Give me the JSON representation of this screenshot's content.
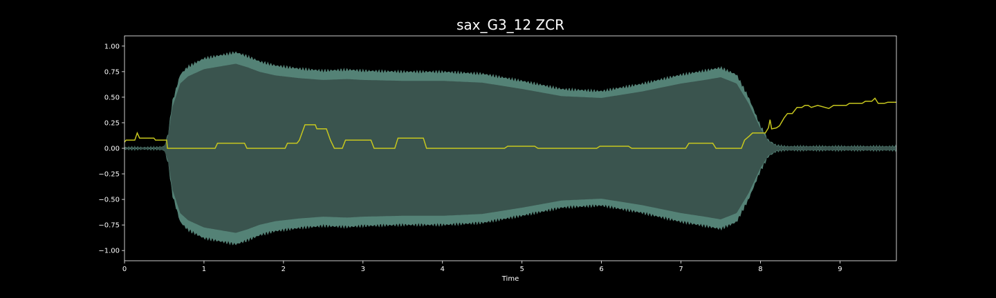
{
  "chart_data": {
    "type": "area",
    "title": "sax_G3_12 ZCR",
    "xlabel": "Time",
    "ylabel": "",
    "xlim": [
      0,
      9.71
    ],
    "ylim": [
      -1.1,
      1.1
    ],
    "grid": false,
    "x_ticks": [
      0,
      1,
      2,
      3,
      4,
      5,
      6,
      7,
      8,
      9
    ],
    "y_ticks": [
      1.0,
      0.75,
      0.5,
      0.25,
      0.0,
      -0.25,
      -0.5,
      -0.75,
      -1.0
    ],
    "y_tick_labels": [
      "1.00",
      "0.75",
      "0.50",
      "0.25",
      "0.00",
      "−0.25",
      "−0.50",
      "−0.75",
      "−1.00"
    ],
    "colors": {
      "background": "#000000",
      "waveform_fill": "#3a544e",
      "waveform_edge": "#6aa898",
      "zcr_line": "#c8c81e",
      "axes": "#ffffff"
    },
    "series": [
      {
        "kind": "waveform_envelope",
        "x": [
          0.0,
          0.4,
          0.5,
          0.55,
          0.6,
          0.7,
          0.8,
          0.9,
          1.0,
          1.2,
          1.4,
          1.55,
          1.7,
          1.9,
          2.2,
          2.5,
          2.8,
          3.0,
          3.5,
          4.0,
          4.5,
          5.0,
          5.5,
          6.0,
          6.5,
          7.0,
          7.3,
          7.5,
          7.7,
          7.85,
          8.0,
          8.1,
          8.2,
          8.3,
          8.5,
          9.0,
          9.71
        ],
        "upper": [
          0.01,
          0.01,
          0.02,
          0.15,
          0.45,
          0.72,
          0.8,
          0.84,
          0.88,
          0.91,
          0.94,
          0.9,
          0.85,
          0.81,
          0.78,
          0.76,
          0.77,
          0.76,
          0.75,
          0.75,
          0.73,
          0.66,
          0.58,
          0.56,
          0.63,
          0.72,
          0.76,
          0.79,
          0.72,
          0.5,
          0.22,
          0.08,
          0.03,
          0.02,
          0.02,
          0.02,
          0.02
        ],
        "lower": [
          -0.01,
          -0.01,
          -0.02,
          -0.15,
          -0.45,
          -0.72,
          -0.8,
          -0.84,
          -0.88,
          -0.91,
          -0.94,
          -0.9,
          -0.85,
          -0.81,
          -0.78,
          -0.76,
          -0.77,
          -0.76,
          -0.75,
          -0.75,
          -0.73,
          -0.66,
          -0.58,
          -0.56,
          -0.63,
          -0.72,
          -0.76,
          -0.79,
          -0.72,
          -0.5,
          -0.22,
          -0.08,
          -0.03,
          -0.02,
          -0.02,
          -0.02,
          -0.02
        ]
      },
      {
        "kind": "zcr_line",
        "x": [
          0.0,
          0.02,
          0.13,
          0.16,
          0.19,
          0.37,
          0.39,
          0.53,
          0.54,
          1.14,
          1.17,
          1.51,
          1.54,
          2.02,
          2.05,
          2.17,
          2.2,
          2.27,
          2.4,
          2.42,
          2.54,
          2.59,
          2.64,
          2.74,
          2.78,
          3.1,
          3.14,
          3.4,
          3.44,
          3.76,
          3.8,
          4.78,
          4.82,
          5.16,
          5.2,
          5.94,
          5.98,
          6.34,
          6.38,
          7.06,
          7.1,
          7.4,
          7.44,
          7.76,
          7.8,
          7.86,
          7.9,
          8.06,
          8.1,
          8.12,
          8.14,
          8.2,
          8.24,
          8.3,
          8.34,
          8.4,
          8.46,
          8.52,
          8.56,
          8.6,
          8.64,
          8.72,
          8.86,
          8.92,
          9.08,
          9.12,
          9.28,
          9.32,
          9.4,
          9.44,
          9.48,
          9.56,
          9.6,
          9.71
        ],
        "y": [
          0.06,
          0.08,
          0.08,
          0.15,
          0.1,
          0.1,
          0.08,
          0.08,
          0.0,
          0.0,
          0.05,
          0.05,
          0.0,
          0.0,
          0.05,
          0.05,
          0.08,
          0.23,
          0.23,
          0.19,
          0.19,
          0.08,
          0.0,
          0.0,
          0.08,
          0.08,
          0.0,
          0.0,
          0.1,
          0.1,
          0.0,
          0.0,
          0.02,
          0.02,
          0.0,
          0.0,
          0.02,
          0.02,
          0.0,
          0.0,
          0.05,
          0.05,
          0.0,
          0.0,
          0.08,
          0.12,
          0.15,
          0.15,
          0.2,
          0.28,
          0.19,
          0.2,
          0.22,
          0.3,
          0.34,
          0.34,
          0.4,
          0.4,
          0.42,
          0.42,
          0.4,
          0.42,
          0.39,
          0.42,
          0.42,
          0.44,
          0.44,
          0.46,
          0.46,
          0.49,
          0.44,
          0.44,
          0.45,
          0.45
        ]
      }
    ]
  }
}
